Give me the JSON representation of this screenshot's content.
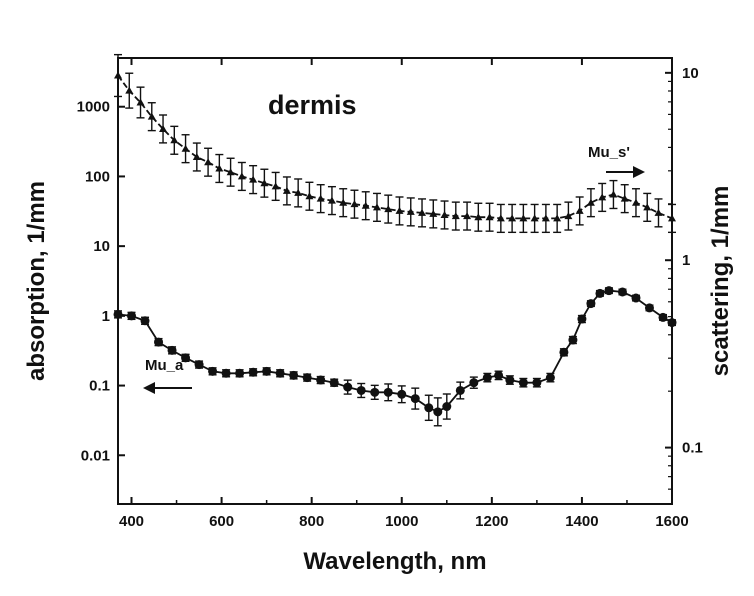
{
  "chart_data": {
    "type": "line",
    "title": "dermis",
    "xlabel": "Wavelength, nm",
    "ylabel_left": "absorption, 1/mm",
    "ylabel_right": "scattering, 1/mm",
    "xlim": [
      370,
      1600
    ],
    "ylim_left": [
      0.002,
      5000
    ],
    "ylim_right": [
      0.05,
      12
    ],
    "y_scale": "log",
    "grid": false,
    "x_ticks": [
      400,
      600,
      800,
      1000,
      1200,
      1400,
      1600
    ],
    "x_tick_labels": [
      "400",
      "600",
      "800",
      "1000",
      "1200",
      "1400",
      "1600"
    ],
    "y_left_ticks": [
      1000,
      100,
      10,
      1,
      0.1,
      0.01
    ],
    "y_left_tick_labels": [
      "1000",
      "100",
      "10",
      "1",
      "0.1",
      "0.01"
    ],
    "y_right_ticks": [
      10,
      1,
      0.1
    ],
    "y_right_tick_labels": [
      "10",
      "1",
      "0.1"
    ],
    "annotations": [
      {
        "text": "Mu_s'",
        "direction": "right"
      },
      {
        "text": "Mu_a",
        "direction": "left"
      }
    ],
    "series": [
      {
        "name": "Mu_s'",
        "axis": "left",
        "marker": "triangle",
        "error_bars": true,
        "x": [
          370,
          395,
          420,
          445,
          470,
          495,
          520,
          545,
          570,
          595,
          620,
          645,
          670,
          695,
          720,
          745,
          770,
          795,
          820,
          845,
          870,
          895,
          920,
          945,
          970,
          995,
          1020,
          1045,
          1070,
          1095,
          1120,
          1145,
          1170,
          1195,
          1220,
          1245,
          1270,
          1295,
          1320,
          1345,
          1370,
          1395,
          1420,
          1445,
          1470,
          1495,
          1520,
          1545,
          1570,
          1600
        ],
        "y": [
          2800,
          1700,
          1150,
          720,
          480,
          330,
          250,
          190,
          160,
          130,
          115,
          100,
          90,
          80,
          72,
          62,
          58,
          52,
          48,
          45,
          42,
          40,
          38,
          36,
          34,
          32,
          31,
          30,
          29,
          28,
          27,
          27,
          26,
          26,
          25,
          25,
          25,
          25,
          25,
          25,
          27,
          32,
          42,
          50,
          55,
          48,
          42,
          36,
          30,
          25
        ],
        "errors": [
          0.3,
          0.25,
          0.22,
          0.2,
          0.2,
          0.2,
          0.2,
          0.2,
          0.2,
          0.2,
          0.2,
          0.2,
          0.2,
          0.2,
          0.2,
          0.2,
          0.2,
          0.2,
          0.2,
          0.2,
          0.2,
          0.2,
          0.2,
          0.2,
          0.2,
          0.2,
          0.2,
          0.2,
          0.2,
          0.2,
          0.2,
          0.2,
          0.2,
          0.2,
          0.2,
          0.2,
          0.2,
          0.2,
          0.2,
          0.2,
          0.2,
          0.2,
          0.2,
          0.2,
          0.2,
          0.2,
          0.2,
          0.2,
          0.2,
          0.2
        ]
      },
      {
        "name": "Mu_a",
        "axis": "left",
        "marker": "circle",
        "error_bars": true,
        "x": [
          370,
          400,
          430,
          460,
          490,
          520,
          550,
          580,
          610,
          640,
          670,
          700,
          730,
          760,
          790,
          820,
          850,
          880,
          910,
          940,
          970,
          1000,
          1030,
          1060,
          1080,
          1100,
          1130,
          1160,
          1190,
          1215,
          1240,
          1270,
          1300,
          1330,
          1360,
          1380,
          1400,
          1420,
          1440,
          1460,
          1490,
          1520,
          1550,
          1580,
          1600
        ],
        "y": [
          1.05,
          1.0,
          0.85,
          0.42,
          0.32,
          0.25,
          0.2,
          0.16,
          0.15,
          0.15,
          0.155,
          0.16,
          0.15,
          0.14,
          0.13,
          0.12,
          0.11,
          0.095,
          0.085,
          0.08,
          0.08,
          0.075,
          0.065,
          0.048,
          0.042,
          0.05,
          0.085,
          0.11,
          0.13,
          0.14,
          0.12,
          0.11,
          0.11,
          0.13,
          0.3,
          0.45,
          0.9,
          1.5,
          2.1,
          2.3,
          2.2,
          1.8,
          1.3,
          0.95,
          0.8
        ],
        "errors": [
          0.05,
          0.05,
          0.05,
          0.05,
          0.05,
          0.05,
          0.05,
          0.05,
          0.05,
          0.05,
          0.05,
          0.05,
          0.05,
          0.05,
          0.05,
          0.05,
          0.05,
          0.1,
          0.1,
          0.1,
          0.12,
          0.12,
          0.15,
          0.18,
          0.2,
          0.18,
          0.12,
          0.08,
          0.06,
          0.06,
          0.06,
          0.06,
          0.06,
          0.06,
          0.05,
          0.05,
          0.05,
          0.04,
          0.04,
          0.04,
          0.04,
          0.04,
          0.04,
          0.04,
          0.04
        ]
      }
    ]
  }
}
